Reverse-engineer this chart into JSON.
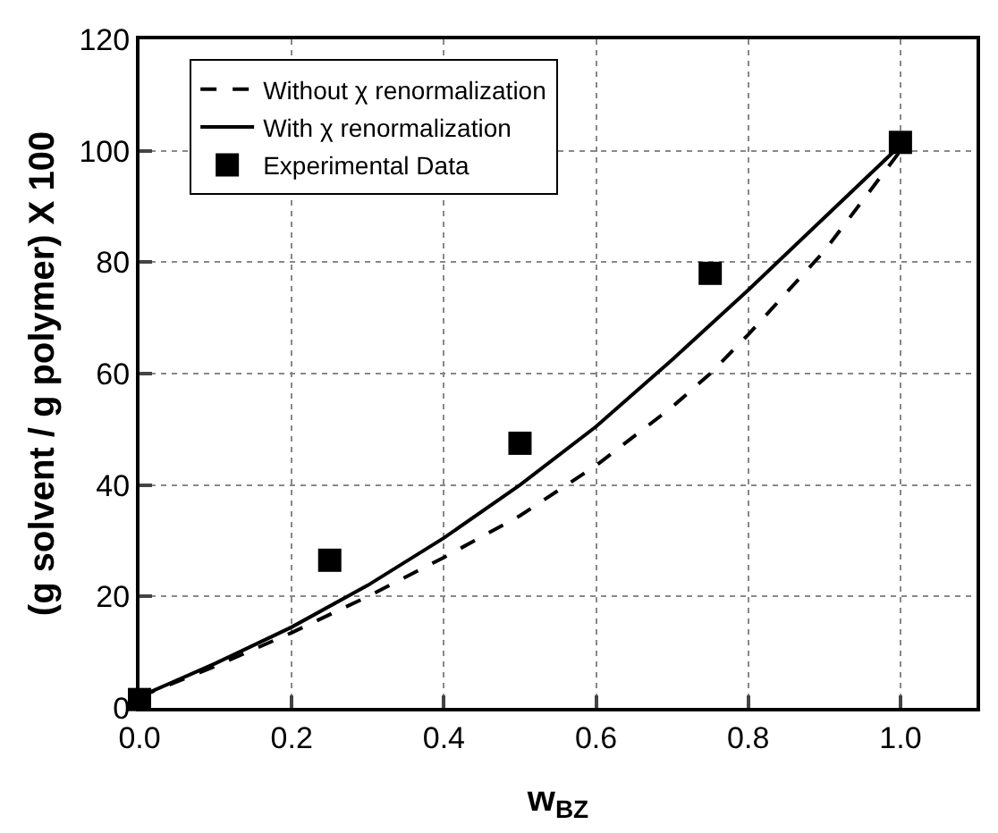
{
  "chart_data": {
    "type": "line",
    "xlabel": "w$_{BZ}$",
    "ylabel": "(g solvent / g polymer) X 100",
    "xlim": [
      0,
      1.1
    ],
    "xticks": [
      {
        "value": 0,
        "label": "0.0"
      },
      0.2,
      0.4,
      0.6,
      0.8,
      {
        "value": 1,
        "label": "1.0"
      }
    ],
    "ylim": [
      0,
      120
    ],
    "yticks": [
      0,
      20,
      40,
      60,
      80,
      100,
      120
    ],
    "grid": true,
    "legend": "top left",
    "series": [
      {
        "name": "Without χ renormalization",
        "line_style": "dashed",
        "marker": "none",
        "color": "#000000",
        "x": [
          0,
          0.1,
          0.2,
          0.3,
          0.4,
          0.5,
          0.6,
          0.7,
          0.75,
          0.8,
          0.9,
          1.0
        ],
        "values": [
          2,
          7.5,
          13.5,
          20,
          27,
          34.5,
          43.5,
          54,
          60,
          67,
          82,
          100
        ]
      },
      {
        "name": "With χ renormalization",
        "line_style": "solid",
        "marker": "none",
        "color": "#000000",
        "x": [
          0,
          0.1,
          0.2,
          0.3,
          0.4,
          0.5,
          0.6,
          0.7,
          0.8,
          0.9,
          1.0
        ],
        "values": [
          2,
          8,
          14.5,
          22,
          30.5,
          40,
          50.5,
          62.5,
          75,
          88,
          101
        ]
      },
      {
        "name": "Experimental Data",
        "type": "scatter",
        "marker": "square",
        "color": "#000000",
        "x": [
          0,
          0.25,
          0.5,
          0.75,
          1.0
        ],
        "values": [
          1.5,
          26.5,
          47.5,
          78,
          101.5
        ]
      }
    ]
  }
}
